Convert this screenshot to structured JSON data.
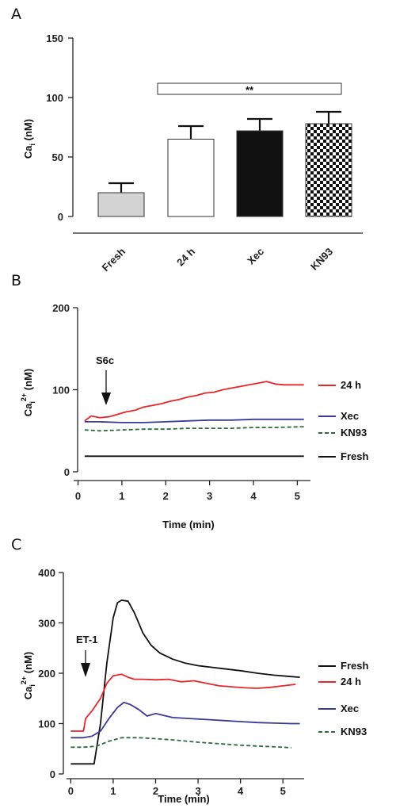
{
  "chart_data": [
    {
      "panel": "A",
      "type": "bar",
      "categories": [
        "Fresh",
        "24 h",
        "Xec",
        "KN93"
      ],
      "values": [
        20,
        65,
        72,
        78
      ],
      "errors": [
        8,
        11,
        10,
        10
      ],
      "fills": [
        "#d3d3d3",
        "#ffffff",
        "#111111",
        "checker"
      ],
      "ylabel": "Ca",
      "ylabel_sub": "i",
      "ylabel_unit": " (nM)",
      "ylim": [
        0,
        150
      ],
      "yticks": [
        "0",
        "50",
        "100",
        "150"
      ],
      "annotation": "**"
    },
    {
      "panel": "B",
      "type": "line",
      "ylabel": "Ca",
      "ylabel_sub": "i",
      "ylabel_sup": "2+",
      "ylabel_unit": " (nM)",
      "xlabel": "Time (min)",
      "xlim": [
        -0.1,
        5.3
      ],
      "ylim": [
        0,
        200
      ],
      "xticks": [
        "0",
        "1",
        "2",
        "3",
        "4",
        "5"
      ],
      "yticks": [
        "0",
        "100",
        "200"
      ],
      "annotation": "S6c",
      "annotation_x": 0.62,
      "series": [
        {
          "name": "24 h",
          "color": "#e8252a",
          "dash": false,
          "x": [
            0.15,
            0.3,
            0.5,
            0.7,
            0.9,
            1.1,
            1.3,
            1.5,
            1.7,
            1.9,
            2.1,
            2.3,
            2.5,
            2.7,
            2.9,
            3.1,
            3.3,
            3.5,
            3.7,
            3.9,
            4.1,
            4.3,
            4.5,
            4.7,
            4.9,
            5.15
          ],
          "y": [
            62,
            68,
            66,
            67,
            70,
            73,
            75,
            79,
            81,
            83,
            86,
            88,
            91,
            93,
            96,
            97,
            100,
            102,
            104,
            106,
            108,
            110,
            107,
            106,
            106,
            106
          ]
        },
        {
          "name": "Xec",
          "color": "#3a3a9a",
          "dash": false,
          "x": [
            0.15,
            0.5,
            1.0,
            1.5,
            2.0,
            2.5,
            3.0,
            3.5,
            4.0,
            4.5,
            5.15
          ],
          "y": [
            61,
            61,
            60,
            60,
            61,
            62,
            63,
            63,
            64,
            64,
            64
          ]
        },
        {
          "name": "KN93",
          "color": "#2e6b3c",
          "dash": true,
          "x": [
            0.15,
            0.5,
            1.0,
            1.5,
            2.0,
            2.5,
            3.0,
            3.5,
            4.0,
            4.5,
            5.15
          ],
          "y": [
            51,
            50,
            51,
            52,
            52,
            53,
            53,
            53,
            54,
            54,
            55
          ]
        },
        {
          "name": "Fresh",
          "color": "#111111",
          "dash": false,
          "x": [
            0.15,
            0.5,
            1.0,
            1.5,
            2.0,
            2.5,
            3.0,
            3.5,
            4.0,
            4.5,
            5.15
          ],
          "y": [
            19,
            19,
            19,
            19,
            19,
            19,
            19,
            19,
            19,
            19,
            19
          ]
        }
      ]
    },
    {
      "panel": "C",
      "type": "line",
      "ylabel": "Ca",
      "ylabel_sub": "i",
      "ylabel_sup": "2+",
      "ylabel_unit": " (nM)",
      "xlabel": "Time (min)",
      "xlim": [
        -0.1,
        5.5
      ],
      "ylim": [
        0,
        400
      ],
      "xticks": [
        "0",
        "1",
        "2",
        "3",
        "4",
        "5"
      ],
      "yticks": [
        "0",
        "100",
        "200",
        "300",
        "400"
      ],
      "annotation": "ET-1",
      "annotation_x": 0.33,
      "series": [
        {
          "name": "Fresh",
          "color": "#111111",
          "dash": false,
          "x": [
            0,
            0.3,
            0.55,
            0.7,
            0.85,
            1.0,
            1.1,
            1.2,
            1.35,
            1.5,
            1.7,
            1.9,
            2.1,
            2.4,
            2.7,
            3.0,
            3.3,
            3.6,
            4.0,
            4.4,
            4.8,
            5.1,
            5.4
          ],
          "y": [
            20,
            20,
            20,
            100,
            220,
            310,
            340,
            345,
            343,
            320,
            280,
            255,
            240,
            228,
            220,
            215,
            212,
            209,
            205,
            200,
            196,
            194,
            192
          ]
        },
        {
          "name": "24 h",
          "color": "#e8252a",
          "dash": false,
          "x": [
            0,
            0.3,
            0.35,
            0.5,
            0.7,
            0.85,
            1.0,
            1.2,
            1.35,
            1.5,
            1.7,
            2.0,
            2.3,
            2.6,
            2.9,
            3.2,
            3.5,
            3.8,
            4.1,
            4.4,
            4.7,
            5.0,
            5.3
          ],
          "y": [
            85,
            85,
            110,
            125,
            150,
            180,
            195,
            198,
            192,
            188,
            188,
            187,
            188,
            183,
            185,
            180,
            175,
            173,
            171,
            170,
            172,
            175,
            178
          ]
        },
        {
          "name": "Xec",
          "color": "#3a3a9a",
          "dash": false,
          "x": [
            0,
            0.3,
            0.5,
            0.7,
            0.9,
            1.1,
            1.25,
            1.4,
            1.6,
            1.8,
            2.0,
            2.4,
            2.8,
            3.2,
            3.6,
            4.0,
            4.4,
            4.8,
            5.2,
            5.4
          ],
          "y": [
            72,
            72,
            75,
            85,
            110,
            132,
            142,
            138,
            128,
            115,
            120,
            112,
            110,
            108,
            106,
            104,
            102,
            101,
            100,
            100
          ]
        },
        {
          "name": "KN93",
          "color": "#2e6b3c",
          "dash": true,
          "x": [
            0,
            0.3,
            0.6,
            0.9,
            1.2,
            1.6,
            2.0,
            2.5,
            3.0,
            3.5,
            4.0,
            4.5,
            5.0,
            5.2
          ],
          "y": [
            53,
            53,
            55,
            65,
            72,
            72,
            70,
            67,
            63,
            60,
            57,
            55,
            53,
            52
          ]
        }
      ]
    }
  ]
}
